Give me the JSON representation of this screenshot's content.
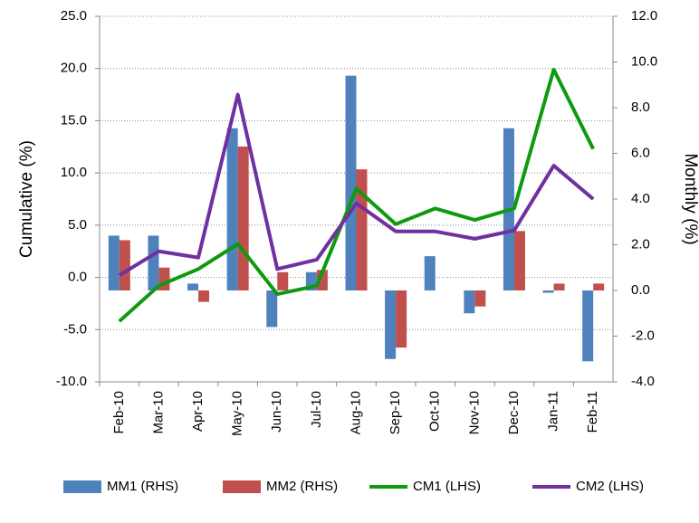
{
  "chart_data": {
    "type": "bar_line",
    "y_label": "Cumulative (%)",
    "y2_label": "Monthly (%)",
    "categories": [
      "Feb-10",
      "Mar-10",
      "Apr-10",
      "May-10",
      "Jun-10",
      "Jul-10",
      "Aug-10",
      "Sep-10",
      "Oct-10",
      "Nov-10",
      "Dec-10",
      "Jan-11",
      "Feb-11"
    ],
    "ylim": [
      -10,
      25
    ],
    "yticks": [
      {
        "value": -10,
        "label": "-10.0"
      },
      {
        "value": -5,
        "label": "-5.0"
      },
      {
        "value": 0,
        "label": "0.0"
      },
      {
        "value": 5,
        "label": "5.0"
      },
      {
        "value": 10,
        "label": "10.0"
      },
      {
        "value": 15,
        "label": "15.0"
      },
      {
        "value": 20,
        "label": "20.0"
      },
      {
        "value": 25,
        "label": "25.0"
      }
    ],
    "y2lim": [
      -4,
      12
    ],
    "y2ticks": [
      {
        "value": -4,
        "label": "-4.0"
      },
      {
        "value": -2,
        "label": "-2.0"
      },
      {
        "value": 0,
        "label": "0.0"
      },
      {
        "value": 2,
        "label": "2.0"
      },
      {
        "value": 4,
        "label": "4.0"
      },
      {
        "value": 6,
        "label": "6.0"
      },
      {
        "value": 8,
        "label": "8.0"
      },
      {
        "value": 10,
        "label": "10.0"
      },
      {
        "value": 12,
        "label": "12.0"
      }
    ],
    "grid": true,
    "legend": "bottom",
    "series": [
      {
        "name": "MM1 (RHS)",
        "kind": "bar",
        "axis": "y2",
        "color": "#4f81bd",
        "values": [
          2.4,
          2.4,
          0.3,
          7.1,
          -1.6,
          0.8,
          9.4,
          -3.0,
          1.5,
          -1.0,
          7.1,
          -0.1,
          -3.1
        ]
      },
      {
        "name": "MM2 (RHS)",
        "kind": "bar",
        "axis": "y2",
        "color": "#c0504d",
        "values": [
          2.2,
          1.0,
          -0.5,
          6.3,
          0.8,
          0.9,
          5.3,
          -2.5,
          0,
          -0.7,
          2.6,
          0.3,
          0.3
        ]
      },
      {
        "name": "CM1 (LHS)",
        "kind": "line",
        "axis": "y",
        "color": "#0e9a0e",
        "values": [
          -4.2,
          -0.8,
          0.8,
          3.2,
          -1.6,
          -0.8,
          8.5,
          5.1,
          6.6,
          5.5,
          6.6,
          19.9,
          12.3
        ]
      },
      {
        "name": "CM2 (LHS)",
        "kind": "line",
        "axis": "y",
        "color": "#7030a0",
        "values": [
          0.2,
          2.5,
          1.9,
          17.5,
          0.8,
          1.7,
          7.1,
          4.4,
          4.4,
          3.7,
          4.5,
          10.7,
          7.5
        ]
      }
    ]
  }
}
